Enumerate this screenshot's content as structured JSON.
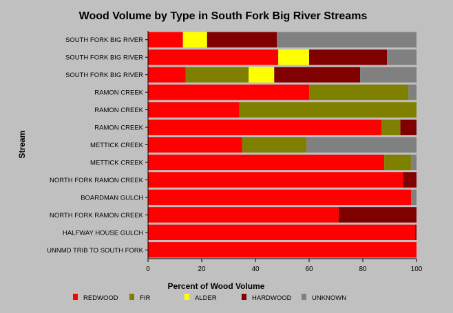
{
  "chart_data": {
    "type": "bar",
    "orientation": "horizontal",
    "stacked": true,
    "title": "Wood Volume by Type in South Fork Big River Streams",
    "xlabel": "Percent of Wood Volume",
    "ylabel": "Stream",
    "xlim": [
      0,
      100
    ],
    "xticks": [
      "0",
      "20",
      "40",
      "60",
      "80",
      "100"
    ],
    "grid": false,
    "legend_position": "bottom",
    "categories": [
      "SOUTH FORK BIG RIVER",
      "SOUTH FORK BIG RIVER",
      "SOUTH FORK BIG RIVER",
      "RAMON CREEK",
      "RAMON CREEK",
      "RAMON CREEK",
      "METTICK CREEK",
      "METTICK CREEK",
      "NORTH FORK RAMON CREEK",
      "BOARDMAN GULCH",
      "NORTH FORK RAMON CREEK",
      "HALFWAY HOUSE GULCH",
      "UNNMD TRIB TO SOUTH FORK"
    ],
    "series": [
      {
        "name": "REDWOOD",
        "color": "#ff0000",
        "values": [
          13,
          48.5,
          14,
          60,
          34,
          87,
          35,
          88,
          95,
          98,
          71,
          99.5,
          100
        ]
      },
      {
        "name": "FIR",
        "color": "#808000",
        "values": [
          0,
          0,
          23.5,
          37,
          66,
          7,
          24,
          10,
          0,
          0,
          0,
          0,
          0
        ]
      },
      {
        "name": "ALDER",
        "color": "#ffff00",
        "values": [
          9,
          11.5,
          9.5,
          0,
          0,
          0,
          0,
          0,
          0,
          0,
          0,
          0,
          0
        ]
      },
      {
        "name": "HARDWOOD",
        "color": "#800000",
        "values": [
          26,
          29,
          32,
          0,
          0,
          6,
          0,
          0,
          5,
          0,
          29,
          0.5,
          0
        ]
      },
      {
        "name": "UNKNOWN",
        "color": "#808080",
        "values": [
          52,
          11,
          21,
          3,
          0,
          0,
          41,
          2,
          0,
          2,
          0,
          0,
          0
        ]
      }
    ]
  }
}
